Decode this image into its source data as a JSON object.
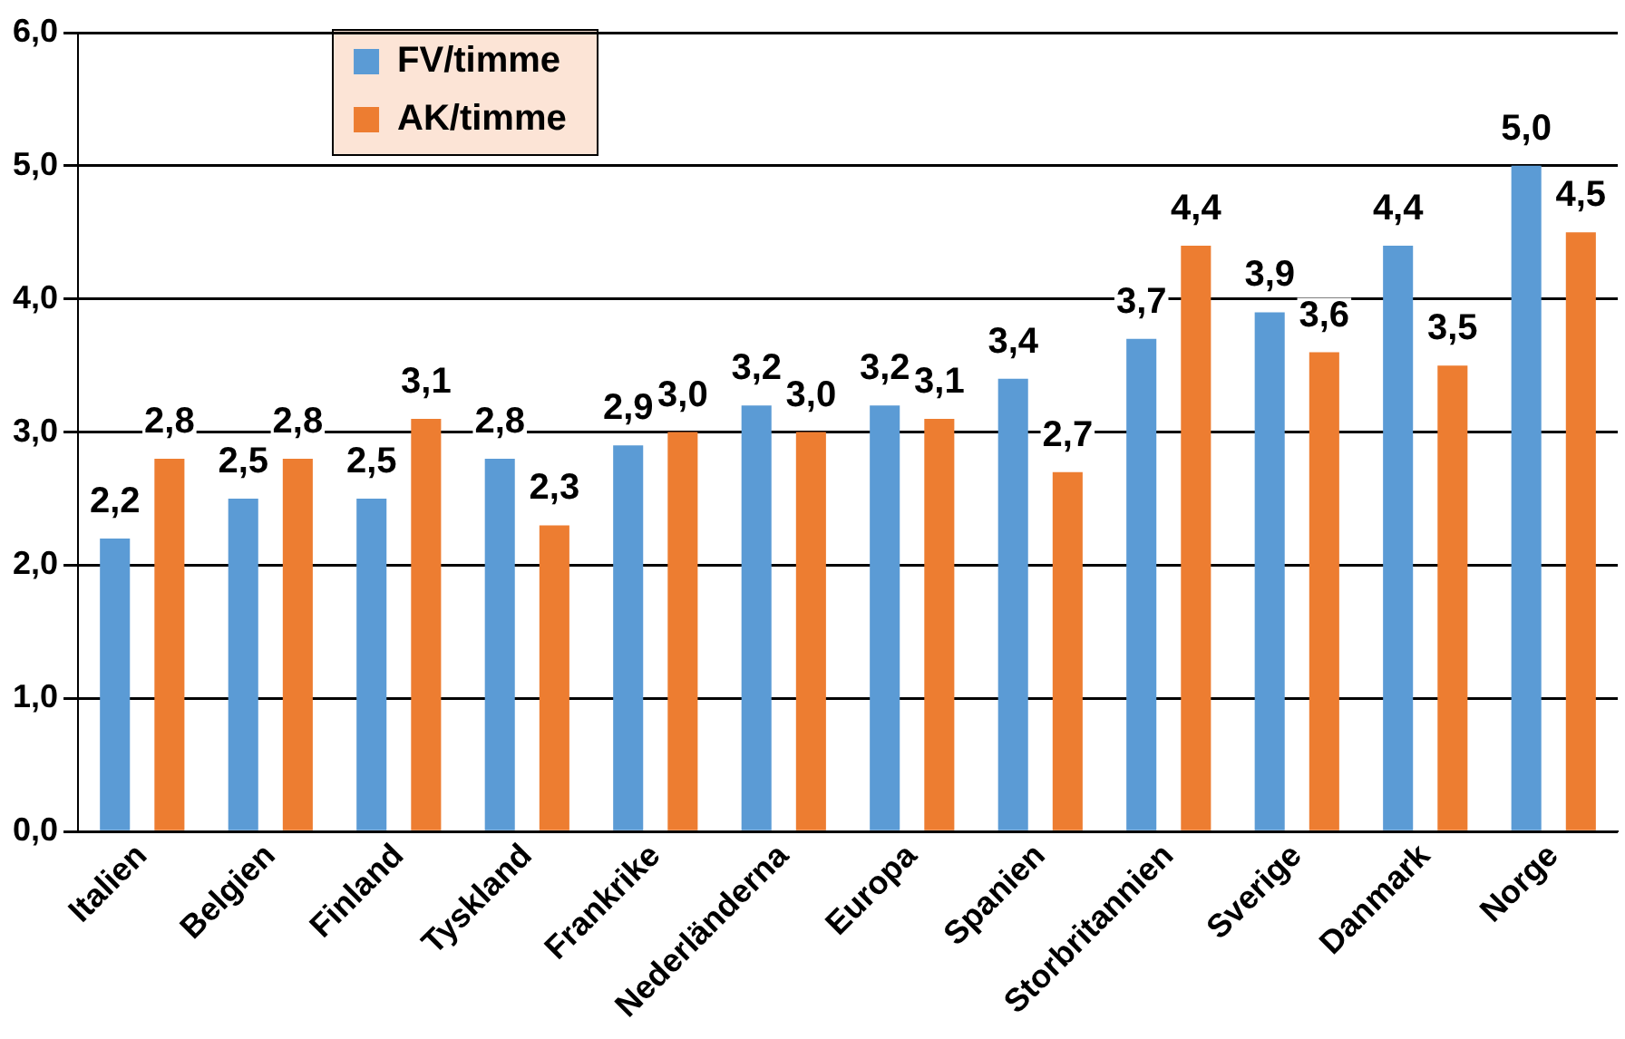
{
  "chart_data": {
    "type": "bar",
    "categories": [
      "Italien",
      "Belgien",
      "Finland",
      "Tyskland",
      "Frankrike",
      "Nederländerna",
      "Europa",
      "Spanien",
      "Storbritannien",
      "Sverige",
      "Danmark",
      "Norge"
    ],
    "series": [
      {
        "name": "FV/timme",
        "color": "#5b9bd5",
        "values": [
          2.2,
          2.5,
          2.5,
          2.8,
          2.9,
          3.2,
          3.2,
          3.4,
          3.7,
          3.9,
          4.4,
          5.0
        ],
        "value_labels": [
          "2,2",
          "2,5",
          "2,5",
          "2,8",
          "2,9",
          "3,2",
          "3,2",
          "3,4",
          "3,7",
          "3,9",
          "4,4",
          "5,0"
        ]
      },
      {
        "name": "AK/timme",
        "color": "#ed7d31",
        "values": [
          2.8,
          2.8,
          3.1,
          2.3,
          3.0,
          3.0,
          3.1,
          2.7,
          4.4,
          3.6,
          3.5,
          4.5
        ],
        "value_labels": [
          "2,8",
          "2,8",
          "3,1",
          "2,3",
          "3,0",
          "3,0",
          "3,1",
          "2,7",
          "4,4",
          "3,6",
          "3,5",
          "4,5"
        ]
      }
    ],
    "ylim": [
      0,
      6
    ],
    "yticks": [
      {
        "value": 0,
        "label": "0,0"
      },
      {
        "value": 1,
        "label": "1,0"
      },
      {
        "value": 2,
        "label": "2,0"
      },
      {
        "value": 3,
        "label": "3,0"
      },
      {
        "value": 4,
        "label": "4,0"
      },
      {
        "value": 5,
        "label": "5,0"
      },
      {
        "value": 6,
        "label": "6,0"
      }
    ],
    "grid": "y",
    "legend": "top left"
  }
}
